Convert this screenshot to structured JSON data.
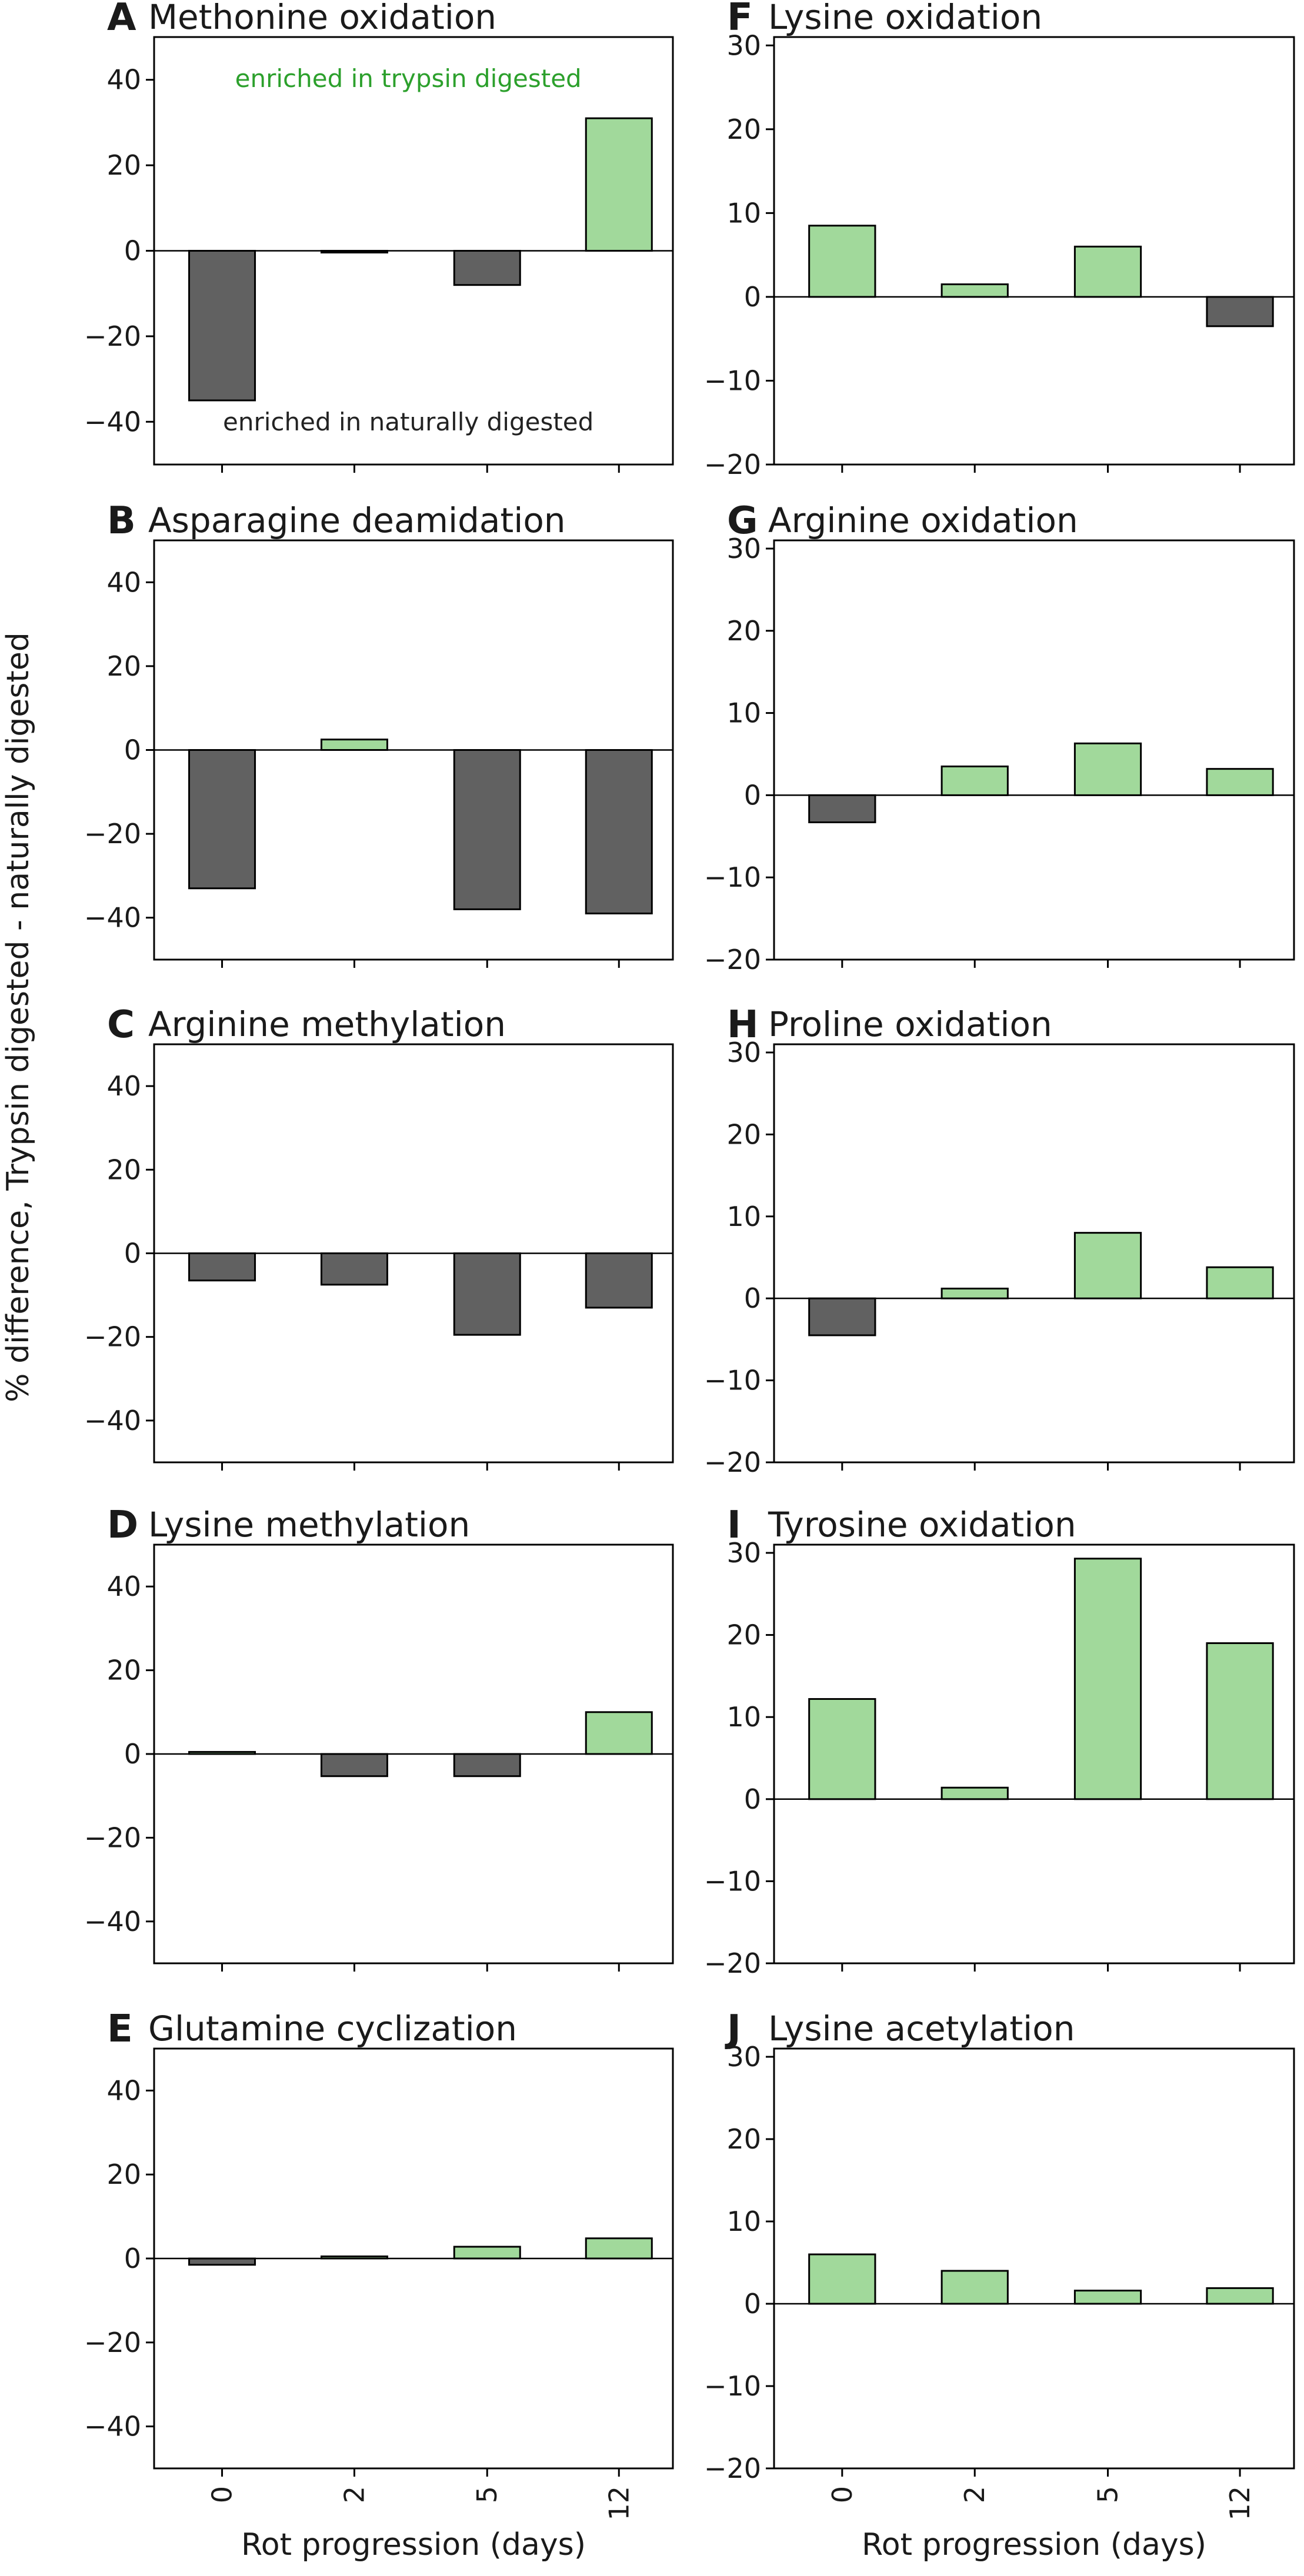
{
  "figure": {
    "ylabel": "% difference, Trypsin digested - naturally digested",
    "xlabel": "Rot progression (days)",
    "colors": {
      "positive": "#a1d99b",
      "negative": "#616161",
      "annotation_top": "#2ca02c",
      "annotation_bottom": "#222222"
    }
  },
  "chart_data": [
    {
      "type": "bar",
      "letter": "A",
      "title": "Methonine oxidation",
      "categories": [
        "0",
        "2",
        "5",
        "12"
      ],
      "values": [
        -35,
        -0.3,
        -8,
        31
      ],
      "ylim": [
        -50,
        50
      ],
      "yticks": [
        -40,
        -20,
        0,
        20,
        40
      ],
      "annotations": {
        "top": "enriched in trypsin digested",
        "bottom": "enriched in naturally digested"
      }
    },
    {
      "type": "bar",
      "letter": "B",
      "title": "Asparagine deamidation",
      "categories": [
        "0",
        "2",
        "5",
        "12"
      ],
      "values": [
        -33,
        2.5,
        -38,
        -39
      ],
      "ylim": [
        -50,
        50
      ],
      "yticks": [
        -40,
        -20,
        0,
        20,
        40
      ]
    },
    {
      "type": "bar",
      "letter": "C",
      "title": "Arginine methylation",
      "categories": [
        "0",
        "2",
        "5",
        "12"
      ],
      "values": [
        -6.5,
        -7.5,
        -19.5,
        -13
      ],
      "ylim": [
        -50,
        50
      ],
      "yticks": [
        -40,
        -20,
        0,
        20,
        40
      ]
    },
    {
      "type": "bar",
      "letter": "D",
      "title": "Lysine methylation",
      "categories": [
        "0",
        "2",
        "5",
        "12"
      ],
      "values": [
        0.5,
        -5.3,
        -5.3,
        10
      ],
      "ylim": [
        -50,
        50
      ],
      "yticks": [
        -40,
        -20,
        0,
        20,
        40
      ]
    },
    {
      "type": "bar",
      "letter": "E",
      "title": "Glutamine cyclization",
      "categories": [
        "0",
        "2",
        "5",
        "12"
      ],
      "values": [
        -1.5,
        0.5,
        2.8,
        4.8
      ],
      "ylim": [
        -50,
        50
      ],
      "yticks": [
        -40,
        -20,
        0,
        20,
        40
      ]
    },
    {
      "type": "bar",
      "letter": "F",
      "title": "Lysine oxidation",
      "categories": [
        "0",
        "2",
        "5",
        "12"
      ],
      "values": [
        8.5,
        1.5,
        6,
        -3.5
      ],
      "ylim": [
        -20,
        31
      ],
      "yticks": [
        -20,
        -10,
        0,
        10,
        20,
        30
      ]
    },
    {
      "type": "bar",
      "letter": "G",
      "title": "Arginine oxidation",
      "categories": [
        "0",
        "2",
        "5",
        "12"
      ],
      "values": [
        -3.3,
        3.5,
        6.3,
        3.2
      ],
      "ylim": [
        -20,
        31
      ],
      "yticks": [
        -20,
        -10,
        0,
        10,
        20,
        30
      ]
    },
    {
      "type": "bar",
      "letter": "H",
      "title": "Proline oxidation",
      "categories": [
        "0",
        "2",
        "5",
        "12"
      ],
      "values": [
        -4.5,
        1.2,
        8,
        3.8
      ],
      "ylim": [
        -20,
        31
      ],
      "yticks": [
        -20,
        -10,
        0,
        10,
        20,
        30
      ]
    },
    {
      "type": "bar",
      "letter": "I",
      "title": "Tyrosine oxidation",
      "categories": [
        "0",
        "2",
        "5",
        "12"
      ],
      "values": [
        12.2,
        1.4,
        29.3,
        19
      ],
      "ylim": [
        -20,
        31
      ],
      "yticks": [
        -20,
        -10,
        0,
        10,
        20,
        30
      ]
    },
    {
      "type": "bar",
      "letter": "J",
      "title": "Lysine acetylation",
      "categories": [
        "0",
        "2",
        "5",
        "12"
      ],
      "values": [
        6,
        4,
        1.6,
        1.9
      ],
      "ylim": [
        -20,
        31
      ],
      "yticks": [
        -20,
        -10,
        0,
        10,
        20,
        30
      ]
    }
  ]
}
